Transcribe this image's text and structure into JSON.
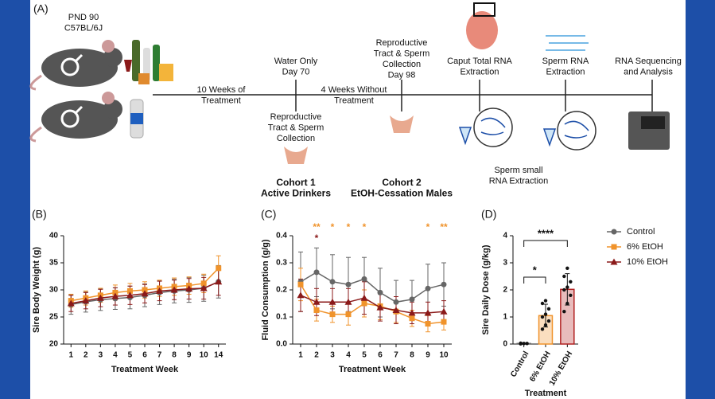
{
  "diagram": {
    "panel_label": "(A)",
    "mouse_label": [
      "PND 90",
      "C57BL/6J"
    ],
    "treatment": [
      "10 Weeks of",
      "Treatment"
    ],
    "day70": [
      "Water Only",
      "Day 70"
    ],
    "collection1": [
      "Reproductive",
      "Tract & Sperm",
      "Collection"
    ],
    "cohort1": [
      "Cohort 1",
      "Active Drinkers"
    ],
    "collection2": [
      "Reproductive",
      "Tract & Sperm",
      "Collection",
      "Day 98"
    ],
    "washout": [
      "4 Weeks Without",
      "Treatment"
    ],
    "cohort2": [
      "Cohort 2",
      "EtOH-Cessation Males"
    ],
    "caput": [
      "Caput Total RNA",
      "Extraction"
    ],
    "sperm": [
      "Sperm RNA",
      "Extraction"
    ],
    "small": [
      "Sperm small",
      "RNA Extraction"
    ],
    "seq": [
      "RNA Sequencing",
      "and Analysis"
    ]
  },
  "chart_data": [
    {
      "type": "line",
      "panel_label": "(B)",
      "xlabel": "Treatment Week",
      "ylabel": "Sire Body Weight (g)",
      "categories": [
        "1",
        "2",
        "3",
        "4",
        "5",
        "6",
        "7",
        "8",
        "9",
        "10",
        "14"
      ],
      "ylim": [
        20,
        40
      ],
      "yticks": [
        20,
        25,
        30,
        35,
        40
      ],
      "series": [
        {
          "name": "Control",
          "color": "#666666",
          "marker": "circle",
          "values": [
            27.3,
            27.8,
            28.2,
            28.4,
            28.6,
            29,
            29.5,
            29.8,
            30,
            30.3,
            31.5
          ],
          "errors": [
            1.8,
            1.9,
            2,
            2,
            2.1,
            2.1,
            2.2,
            2.2,
            2.3,
            2.4,
            3
          ]
        },
        {
          "name": "6% EtOH",
          "color": "#f0932b",
          "marker": "square",
          "values": [
            28,
            28.5,
            29,
            29.5,
            29.8,
            30,
            30.3,
            30.6,
            30.8,
            31.2,
            34
          ],
          "errors": [
            1.2,
            1.3,
            1.3,
            1.4,
            1.4,
            1.5,
            1.5,
            1.6,
            1.6,
            1.7,
            2.3
          ]
        },
        {
          "name": "10% EtOH",
          "color": "#8b1a1a",
          "marker": "triangle",
          "values": [
            27.5,
            28,
            28.5,
            28.8,
            29,
            29.3,
            29.8,
            30,
            30.2,
            30.3,
            31.5
          ],
          "errors": [
            1.5,
            1.5,
            1.6,
            1.6,
            1.7,
            1.7,
            1.8,
            1.8,
            1.9,
            2,
            2.5
          ]
        }
      ]
    },
    {
      "type": "line",
      "panel_label": "(C)",
      "xlabel": "Treatment Week",
      "ylabel": "Fluid Consumption (g/g)",
      "legend": "right",
      "categories": [
        "1",
        "2",
        "3",
        "4",
        "5",
        "6",
        "7",
        "8",
        "9",
        "10"
      ],
      "ylim": [
        0,
        0.4
      ],
      "yticks": [
        {
          "value": 0,
          "label": "0.0"
        },
        0.1,
        0.2,
        0.3,
        0.4
      ],
      "series": [
        {
          "name": "Control",
          "color": "#666666",
          "marker": "circle",
          "values": [
            0.23,
            0.265,
            0.23,
            0.22,
            0.24,
            0.19,
            0.155,
            0.165,
            0.205,
            0.22
          ],
          "errors": [
            0.11,
            0.09,
            0.1,
            0.1,
            0.08,
            0.09,
            0.08,
            0.07,
            0.09,
            0.08
          ]
        },
        {
          "name": "6% EtOH",
          "color": "#f0932b",
          "marker": "square",
          "values": [
            0.22,
            0.125,
            0.11,
            0.11,
            0.15,
            0.14,
            0.12,
            0.095,
            0.075,
            0.082
          ],
          "errors": [
            0.06,
            0.04,
            0.03,
            0.04,
            0.05,
            0.05,
            0.04,
            0.03,
            0.03,
            0.03
          ]
        },
        {
          "name": "10% EtOH",
          "color": "#8b1a1a",
          "marker": "triangle",
          "values": [
            0.18,
            0.155,
            0.155,
            0.155,
            0.17,
            0.135,
            0.125,
            0.115,
            0.115,
            0.12
          ],
          "errors": [
            0.06,
            0.05,
            0.05,
            0.05,
            0.06,
            0.05,
            0.05,
            0.04,
            0.04,
            0.04
          ]
        }
      ],
      "annotations": [
        {
          "category": "2",
          "text": "**",
          "color": "#f0932b"
        },
        {
          "category": "2",
          "text": "*",
          "color": "#8b1a1a"
        },
        {
          "category": "3",
          "text": "*",
          "color": "#f0932b"
        },
        {
          "category": "4",
          "text": "*",
          "color": "#f0932b"
        },
        {
          "category": "5",
          "text": "*",
          "color": "#f0932b"
        },
        {
          "category": "9",
          "text": "*",
          "color": "#f0932b"
        },
        {
          "category": "10",
          "text": "**",
          "color": "#f0932b"
        }
      ]
    },
    {
      "type": "bar",
      "panel_label": "(D)",
      "xlabel": "Treatment",
      "ylabel": "Sire Daily Dose (g/kg)",
      "categories": [
        "Control",
        "6% EtOH",
        "10% EtOH"
      ],
      "colors": [
        "#666666",
        "#f0932b",
        "#b22222"
      ],
      "values": [
        0.02,
        1.05,
        2.02
      ],
      "errors": [
        0.01,
        0.42,
        0.58
      ],
      "points": [
        [
          0.01,
          0.02,
          0.02,
          0.03
        ],
        [
          0.55,
          0.7,
          0.85,
          1.0,
          1.1,
          1.3,
          1.5,
          1.6
        ],
        [
          1.2,
          1.5,
          1.8,
          2.0,
          2.1,
          2.3,
          2.5,
          2.8
        ]
      ],
      "ylim": [
        0,
        4
      ],
      "yticks": [
        0,
        1,
        2,
        3,
        4
      ],
      "brackets": [
        {
          "from": "Control",
          "to": "6% EtOH",
          "text": "*"
        },
        {
          "from": "Control",
          "to": "10% EtOH",
          "text": "****"
        }
      ]
    }
  ]
}
